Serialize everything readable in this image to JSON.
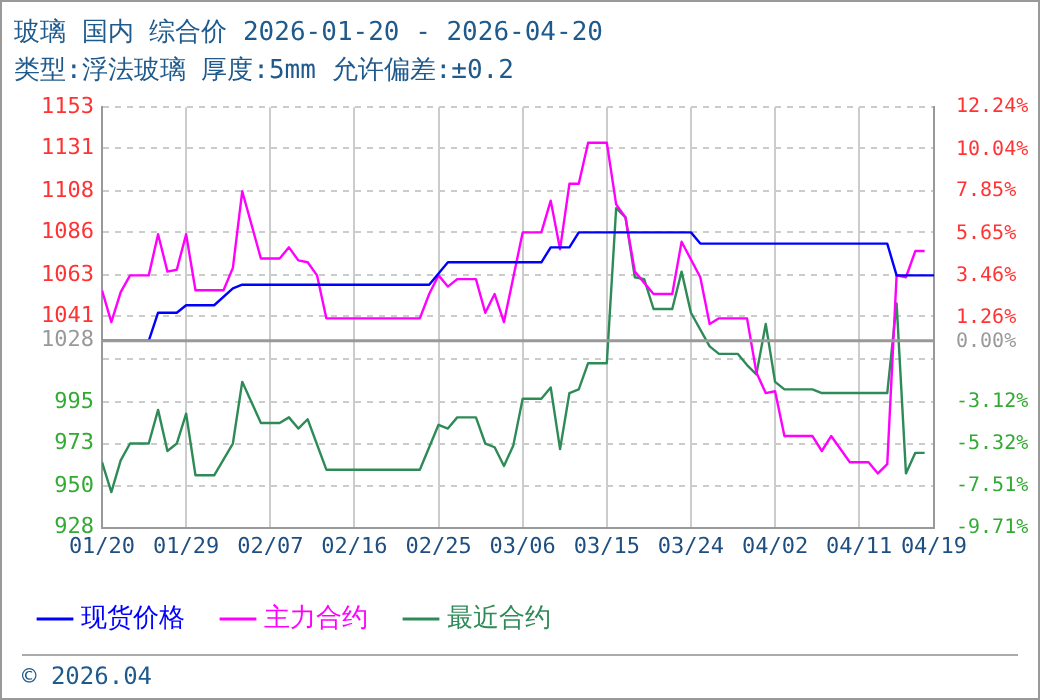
{
  "chart_data": {
    "type": "line",
    "title": "玻璃 国内 综合价 2026-01-20 - 2026-04-20",
    "subtitle": "类型:浮法玻璃 厚度:5mm 允许偏差:±0.2",
    "xlim": [
      "--01-20",
      "--04-19"
    ],
    "xticks": [
      {
        "value": "--01-20",
        "label": "01/20"
      },
      {
        "value": "--01-29",
        "label": "01/29"
      },
      {
        "value": "--02-07",
        "label": "02/07"
      },
      {
        "value": "--02-16",
        "label": "02/16"
      },
      {
        "value": "--02-25",
        "label": "02/25"
      },
      {
        "value": "--03-06",
        "label": "03/06"
      },
      {
        "value": "--03-15",
        "label": "03/15"
      },
      {
        "value": "--03-24",
        "label": "03/24"
      },
      {
        "value": "--04-02",
        "label": "04/02"
      },
      {
        "value": "--04-11",
        "label": "04/11"
      },
      {
        "value": "--04-19",
        "label": "04/19"
      }
    ],
    "ylim": [
      928,
      1153
    ],
    "yticks": [
      1153,
      1131,
      1108,
      1086,
      1063,
      1041,
      1028,
      {
        "value": 1018,
        "label": null
      },
      995,
      973,
      950,
      928
    ],
    "y2lim": [
      -9.71,
      12.24
    ],
    "y2ticks": [
      {
        "value": 12.24,
        "label": "12.24%"
      },
      {
        "value": 10.04,
        "label": "10.04%"
      },
      {
        "value": 7.85,
        "label": "7.85%"
      },
      {
        "value": 5.65,
        "label": "5.65%"
      },
      {
        "value": 3.46,
        "label": "3.46%"
      },
      {
        "value": 1.26,
        "label": "1.26%"
      },
      {
        "value": 0,
        "label": "0.00%"
      },
      {
        "value": -3.12,
        "label": "-3.12%"
      },
      {
        "value": -5.32,
        "label": "-5.32%"
      },
      {
        "value": -7.51,
        "label": "-7.51%"
      },
      {
        "value": -9.71,
        "label": "-9.71%"
      }
    ],
    "ref_lines": [
      {
        "axis": "y",
        "value": 1028,
        "color": "#999999"
      }
    ],
    "series": [
      {
        "name": "现货价格",
        "color": "#0000ff",
        "x": [
          "--01-20",
          "--01-25",
          "--01-26",
          "--01-28",
          "--01-29",
          "--02-01",
          "--02-03",
          "--02-04",
          "--02-24",
          "--02-26",
          "--03-08",
          "--03-09",
          "--03-11",
          "--03-12",
          "--03-24",
          "--03-25",
          "--04-14",
          "--04-15",
          "--04-19"
        ],
        "values": [
          1028,
          1028,
          1043,
          1043,
          1047,
          1047,
          1056,
          1058,
          1058,
          1070,
          1070,
          1078,
          1078,
          1086,
          1086,
          1080,
          1080,
          1063,
          1063
        ]
      },
      {
        "name": "主力合约",
        "color": "#ff00ff",
        "x": [
          "--01-20",
          "--01-21",
          "--01-22",
          "--01-23",
          "--01-25",
          "--01-26",
          "--01-27",
          "--01-28",
          "--01-29",
          "--01-30",
          "--02-02",
          "--02-03",
          "--02-04",
          "--02-06",
          "--02-08",
          "--02-09",
          "--02-10",
          "--02-11",
          "--02-12",
          "--02-13",
          "--02-23",
          "--02-24",
          "--02-25",
          "--02-26",
          "--02-27",
          "--03-01",
          "--03-02",
          "--03-03",
          "--03-04",
          "--03-06",
          "--03-08",
          "--03-09",
          "--03-10",
          "--03-11",
          "--03-12",
          "--03-13",
          "--03-15",
          "--03-16",
          "--03-17",
          "--03-18",
          "--03-20",
          "--03-22",
          "--03-23",
          "--03-25",
          "--03-26",
          "--03-27",
          "--03-30",
          "--03-31",
          "--04-01",
          "--04-02",
          "--04-03",
          "--04-06",
          "--04-07",
          "--04-08",
          "--04-10",
          "--04-12",
          "--04-13",
          "--04-14",
          "--04-15",
          "--04-16",
          "--04-17",
          "--04-18"
        ],
        "values": [
          1055,
          1038,
          1054,
          1063,
          1063,
          1085,
          1065,
          1066,
          1085,
          1055,
          1055,
          1067,
          1108,
          1072,
          1072,
          1078,
          1071,
          1070,
          1063,
          1040,
          1040,
          1053,
          1063,
          1057,
          1061,
          1061,
          1043,
          1053,
          1038,
          1086,
          1086,
          1103,
          1077,
          1112,
          1112,
          1134,
          1134,
          1101,
          1094,
          1065,
          1053,
          1053,
          1081,
          1062,
          1037,
          1040,
          1040,
          1011,
          1000,
          1001,
          977,
          977,
          969,
          977,
          963,
          963,
          957,
          962,
          1063,
          1062,
          1076,
          1076
        ]
      },
      {
        "name": "最近合约",
        "color": "#2e8b57",
        "x": [
          "--01-20",
          "--01-21",
          "--01-22",
          "--01-23",
          "--01-25",
          "--01-26",
          "--01-27",
          "--01-28",
          "--01-29",
          "--01-30",
          "--02-01",
          "--02-03",
          "--02-04",
          "--02-06",
          "--02-08",
          "--02-09",
          "--02-10",
          "--02-11",
          "--02-13",
          "--02-23",
          "--02-25",
          "--02-26",
          "--02-27",
          "--03-01",
          "--03-02",
          "--03-03",
          "--03-04",
          "--03-05",
          "--03-06",
          "--03-08",
          "--03-09",
          "--03-10",
          "--03-11",
          "--03-12",
          "--03-13",
          "--03-15",
          "--03-16",
          "--03-17",
          "--03-18",
          "--03-19",
          "--03-20",
          "--03-22",
          "--03-23",
          "--03-24",
          "--03-26",
          "--03-27",
          "--03-29",
          "--03-30",
          "--03-31",
          "--04-01",
          "--04-02",
          "--04-03",
          "--04-06",
          "--04-07",
          "--04-14",
          "--04-15",
          "--04-16",
          "--04-17",
          "--04-18"
        ],
        "values": [
          963,
          947,
          964,
          973,
          973,
          991,
          969,
          973,
          989,
          956,
          956,
          973,
          1006,
          984,
          984,
          987,
          981,
          986,
          959,
          959,
          983,
          981,
          987,
          987,
          973,
          971,
          961,
          972,
          997,
          997,
          1003,
          970,
          1000,
          1002,
          1016,
          1016,
          1099,
          1094,
          1062,
          1061,
          1045,
          1045,
          1065,
          1043,
          1025,
          1021,
          1021,
          1015,
          1010,
          1037,
          1006,
          1002,
          1002,
          1000,
          1000,
          1048,
          957,
          968,
          968
        ]
      }
    ],
    "legend": "bottom",
    "grid": true,
    "marker": "none",
    "line_style": "solid",
    "annotations": [
      "© 2026.04"
    ]
  }
}
